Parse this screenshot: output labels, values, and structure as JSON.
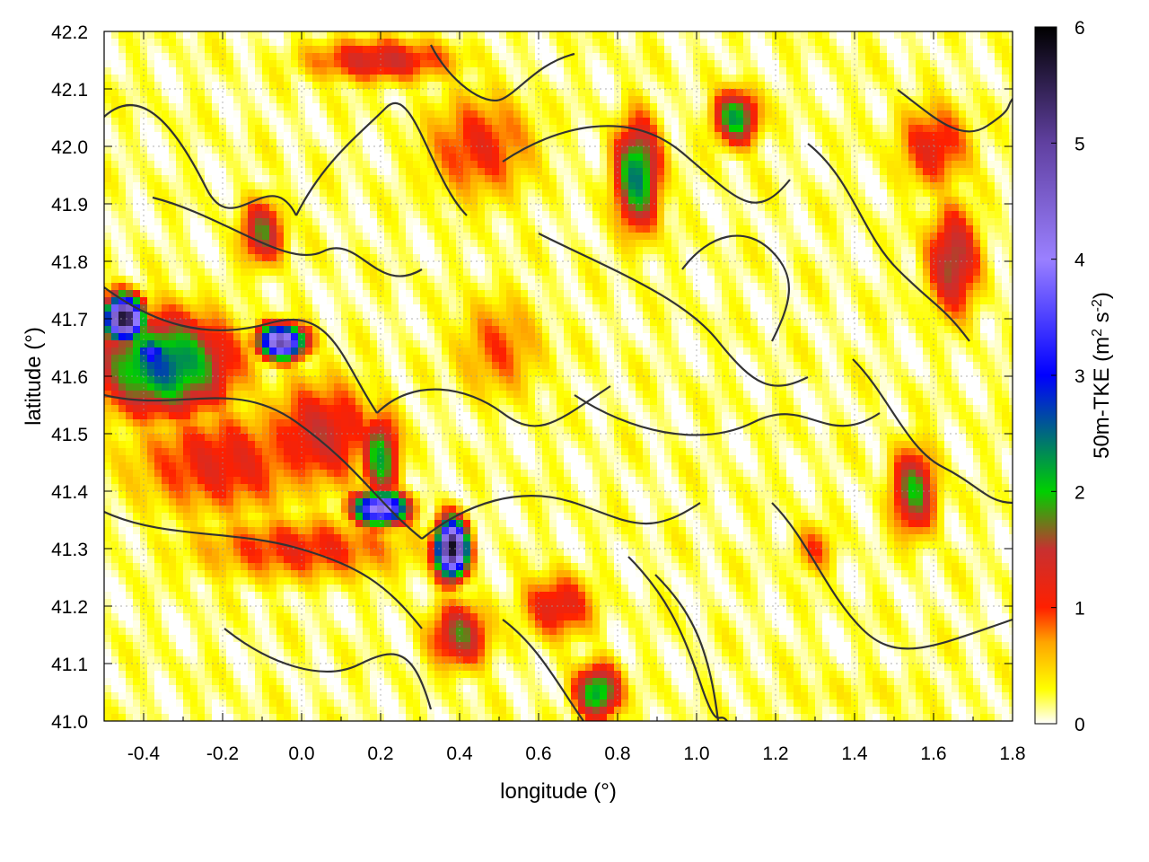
{
  "chart_data": {
    "type": "heatmap",
    "title": "",
    "xlabel": "longitude (°)",
    "ylabel": "latitude (°)",
    "xlim": [
      -0.5,
      1.8
    ],
    "ylim": [
      41.0,
      42.2
    ],
    "xticks": [
      -0.4,
      -0.2,
      0.0,
      0.2,
      0.4,
      0.6,
      0.8,
      1.0,
      1.2,
      1.4,
      1.6,
      1.8
    ],
    "xtick_labels": [
      "-0.4",
      "-0.2",
      "0.0",
      "0.2",
      "0.4",
      "0.6",
      "0.8",
      "1.0",
      "1.2",
      "1.4",
      "1.6",
      "1.8"
    ],
    "yticks": [
      41.0,
      41.1,
      41.2,
      41.3,
      41.4,
      41.5,
      41.6,
      41.7,
      41.8,
      41.9,
      42.0,
      42.1,
      42.2
    ],
    "ytick_labels": [
      "41.0",
      "41.1",
      "41.2",
      "41.3",
      "41.4",
      "41.5",
      "41.6",
      "41.7",
      "41.8",
      "41.9",
      "42.0",
      "42.1",
      "42.2"
    ],
    "grid": true,
    "colorbar": {
      "label": "50m-TKE (m² s⁻²)",
      "label_main": "50m-TKE (m",
      "label_sup1": "2",
      "label_mid": " s",
      "label_sup2": "-2",
      "label_end": ")",
      "range": [
        0,
        6
      ],
      "ticks": [
        0,
        1,
        2,
        3,
        4,
        5,
        6
      ],
      "tick_labels": [
        "0",
        "1",
        "2",
        "3",
        "4",
        "5",
        "6"
      ],
      "colormap": [
        {
          "v": 0.0,
          "color": "#ffffff"
        },
        {
          "v": 0.3,
          "color": "#ffff00"
        },
        {
          "v": 0.7,
          "color": "#ffa500"
        },
        {
          "v": 1.0,
          "color": "#ff2000"
        },
        {
          "v": 1.5,
          "color": "#c83030"
        },
        {
          "v": 2.0,
          "color": "#00d000"
        },
        {
          "v": 3.0,
          "color": "#0000ff"
        },
        {
          "v": 4.0,
          "color": "#9a80ff"
        },
        {
          "v": 5.0,
          "color": "#6040a0"
        },
        {
          "v": 6.0,
          "color": "#000000"
        }
      ]
    },
    "field_features": [
      {
        "lon": -0.35,
        "lat": 41.62,
        "sx": 0.18,
        "sy": 0.09,
        "tke": 2.6
      },
      {
        "lon": -0.45,
        "lat": 41.7,
        "sx": 0.05,
        "sy": 0.04,
        "tke": 5.8
      },
      {
        "lon": -0.38,
        "lat": 41.64,
        "sx": 0.05,
        "sy": 0.03,
        "tke": 3.2
      },
      {
        "lon": -0.2,
        "lat": 41.45,
        "sx": 0.25,
        "sy": 0.1,
        "tke": 1.2
      },
      {
        "lon": -0.05,
        "lat": 41.66,
        "sx": 0.06,
        "sy": 0.03,
        "tke": 4.8
      },
      {
        "lon": 0.05,
        "lat": 41.5,
        "sx": 0.15,
        "sy": 0.1,
        "tke": 1.4
      },
      {
        "lon": 0.2,
        "lat": 41.46,
        "sx": 0.05,
        "sy": 0.08,
        "tke": 2.1
      },
      {
        "lon": 0.2,
        "lat": 41.37,
        "sx": 0.07,
        "sy": 0.03,
        "tke": 4.4
      },
      {
        "lon": 0.38,
        "lat": 41.3,
        "sx": 0.04,
        "sy": 0.05,
        "tke": 5.9
      },
      {
        "lon": 0.0,
        "lat": 41.3,
        "sx": 0.3,
        "sy": 0.06,
        "tke": 1.1
      },
      {
        "lon": -0.1,
        "lat": 41.85,
        "sx": 0.06,
        "sy": 0.06,
        "tke": 1.7
      },
      {
        "lon": 0.5,
        "lat": 41.65,
        "sx": 0.12,
        "sy": 0.1,
        "tke": 0.9
      },
      {
        "lon": 0.4,
        "lat": 41.15,
        "sx": 0.08,
        "sy": 0.06,
        "tke": 1.7
      },
      {
        "lon": 0.45,
        "lat": 42.0,
        "sx": 0.15,
        "sy": 0.1,
        "tke": 1.1
      },
      {
        "lon": 0.85,
        "lat": 41.95,
        "sx": 0.06,
        "sy": 0.1,
        "tke": 2.4
      },
      {
        "lon": 1.1,
        "lat": 42.05,
        "sx": 0.06,
        "sy": 0.05,
        "tke": 2.2
      },
      {
        "lon": 1.65,
        "lat": 41.8,
        "sx": 0.07,
        "sy": 0.1,
        "tke": 1.7
      },
      {
        "lon": 1.55,
        "lat": 41.4,
        "sx": 0.06,
        "sy": 0.08,
        "tke": 1.9
      },
      {
        "lon": 1.6,
        "lat": 42.0,
        "sx": 0.1,
        "sy": 0.08,
        "tke": 1.2
      },
      {
        "lon": 0.75,
        "lat": 41.05,
        "sx": 0.06,
        "sy": 0.05,
        "tke": 2.3
      },
      {
        "lon": 0.65,
        "lat": 41.2,
        "sx": 0.1,
        "sy": 0.06,
        "tke": 1.3
      },
      {
        "lon": 0.2,
        "lat": 42.15,
        "sx": 0.2,
        "sy": 0.04,
        "tke": 1.4
      },
      {
        "lon": 1.3,
        "lat": 41.3,
        "sx": 0.06,
        "sy": 0.05,
        "tke": 0.9
      },
      {
        "lon": 1.4,
        "lat": 41.05,
        "sx": 0.35,
        "sy": 0.05,
        "tke": 0.3
      }
    ]
  }
}
